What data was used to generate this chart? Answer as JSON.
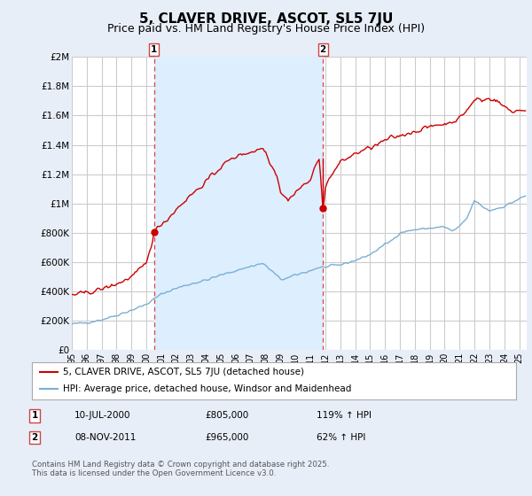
{
  "title": "5, CLAVER DRIVE, ASCOT, SL5 7JU",
  "subtitle": "Price paid vs. HM Land Registry's House Price Index (HPI)",
  "title_fontsize": 11,
  "subtitle_fontsize": 9,
  "bg_color": "#e8eef8",
  "plot_bg_color": "#ffffff",
  "grid_color": "#cccccc",
  "hpi_color": "#7bafd4",
  "house_color": "#cc0000",
  "span_color": "#ddeeff",
  "marker_vline_color": "#dd4444",
  "annotation1": [
    "1",
    "10-JUL-2000",
    "£805,000",
    "119% ↑ HPI"
  ],
  "annotation2": [
    "2",
    "08-NOV-2011",
    "£965,000",
    "62% ↑ HPI"
  ],
  "footer": "Contains HM Land Registry data © Crown copyright and database right 2025.\nThis data is licensed under the Open Government Licence v3.0.",
  "legend1": "5, CLAVER DRIVE, ASCOT, SL5 7JU (detached house)",
  "legend2": "HPI: Average price, detached house, Windsor and Maidenhead",
  "ylim": [
    0,
    2000000
  ],
  "yticks": [
    0,
    200000,
    400000,
    600000,
    800000,
    1000000,
    1200000,
    1400000,
    1600000,
    1800000,
    2000000
  ],
  "ytick_labels": [
    "£0",
    "£200K",
    "£400K",
    "£600K",
    "£800K",
    "£1M",
    "£1.2M",
    "£1.4M",
    "£1.6M",
    "£1.8M",
    "£2M"
  ],
  "year_start": 1995,
  "year_end": 2025,
  "marker1_year": 2000.54,
  "marker2_year": 2011.85,
  "marker1_price": 805000,
  "marker2_price": 965000
}
